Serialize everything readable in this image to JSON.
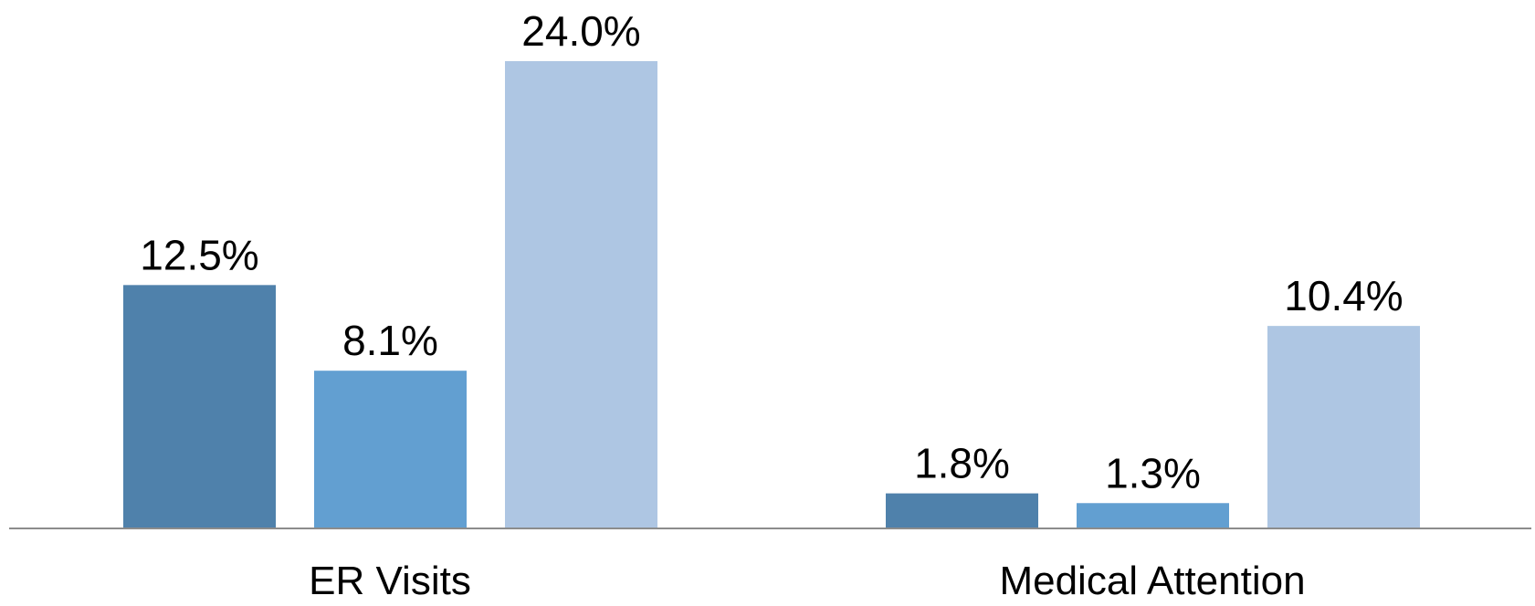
{
  "chart_data": {
    "type": "bar",
    "categories": [
      "ER Visits",
      "Medical Attention"
    ],
    "series": [
      {
        "values": [
          12.5,
          1.8
        ],
        "labels": [
          "12.5%",
          "1.8%"
        ],
        "color": "#4f81ab"
      },
      {
        "values": [
          8.1,
          1.3
        ],
        "labels": [
          "8.1%",
          "1.3%"
        ],
        "color": "#629fd1"
      },
      {
        "values": [
          24.0,
          10.4
        ],
        "labels": [
          "24.0%",
          "10.4%"
        ],
        "color": "#aec6e3"
      }
    ],
    "unit": "%",
    "ylim": [
      0,
      24.0
    ],
    "grid": false,
    "legend": "none",
    "axis_line_color": "#8c8c8c"
  }
}
